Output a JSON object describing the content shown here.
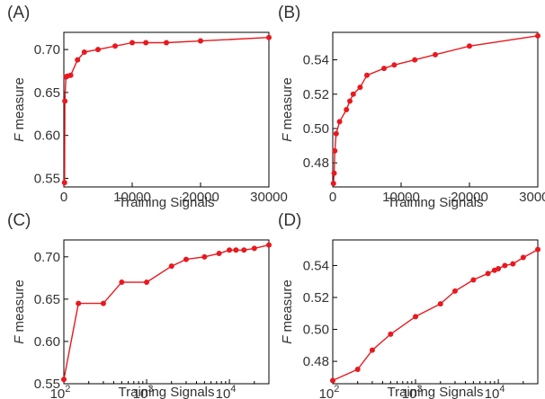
{
  "chart_data": [
    {
      "panel": "(A)",
      "type": "line",
      "xscale": "linear",
      "xlabel": "Training Signals",
      "ylabel_symbol": "F",
      "ylabel_text": " measure",
      "xlim": [
        0,
        30000
      ],
      "ylim": [
        0.54,
        0.72
      ],
      "xticks": [
        0,
        10000,
        20000,
        30000
      ],
      "xtick_labels": [
        "0",
        "10000",
        "20000",
        "30000"
      ],
      "yticks": [
        0.55,
        0.6,
        0.65,
        0.7
      ],
      "ytick_labels": [
        "0.55",
        "0.60",
        "0.65",
        "0.70"
      ],
      "color": "#e8191f",
      "x": [
        100,
        150,
        300,
        500,
        1000,
        2000,
        3000,
        5000,
        7500,
        10000,
        12000,
        15000,
        20000,
        30000
      ],
      "y": [
        0.545,
        0.64,
        0.668,
        0.669,
        0.67,
        0.688,
        0.697,
        0.7,
        0.704,
        0.708,
        0.708,
        0.708,
        0.71,
        0.714
      ]
    },
    {
      "panel": "(B)",
      "type": "line",
      "xscale": "linear",
      "xlabel": "Training Signals",
      "ylabel_symbol": "F",
      "ylabel_text": " measure",
      "xlim": [
        0,
        30000
      ],
      "ylim": [
        0.466,
        0.556
      ],
      "xticks": [
        0,
        10000,
        20000,
        30000
      ],
      "xtick_labels": [
        "0",
        "10000",
        "20000",
        "30000"
      ],
      "yticks": [
        0.48,
        0.5,
        0.52,
        0.54
      ],
      "ytick_labels": [
        "0.48",
        "0.50",
        "0.52",
        "0.54"
      ],
      "color": "#e8191f",
      "x": [
        100,
        200,
        300,
        500,
        1000,
        2000,
        2500,
        3000,
        4000,
        5000,
        7500,
        9000,
        12000,
        15000,
        20000,
        30000
      ],
      "y": [
        0.468,
        0.474,
        0.487,
        0.497,
        0.504,
        0.511,
        0.516,
        0.52,
        0.524,
        0.531,
        0.535,
        0.537,
        0.54,
        0.543,
        0.548,
        0.554
      ]
    },
    {
      "panel": "(C)",
      "type": "line",
      "xscale": "log",
      "xlabel": "Training Signals",
      "ylabel_symbol": "F",
      "ylabel_text": " measure",
      "xlim": [
        100,
        30000
      ],
      "ylim": [
        0.55,
        0.72
      ],
      "xticks": [
        100,
        1000,
        10000
      ],
      "xtick_labels": [
        "10",
        "10",
        "10"
      ],
      "xtick_exponents": [
        "2",
        "3",
        "4"
      ],
      "yticks": [
        0.55,
        0.6,
        0.65,
        0.7
      ],
      "ytick_labels": [
        "0.55",
        "0.60",
        "0.65",
        "0.70"
      ],
      "color": "#e8191f",
      "x": [
        100,
        150,
        300,
        500,
        1000,
        2000,
        3000,
        5000,
        7500,
        10000,
        12000,
        15000,
        20000,
        30000
      ],
      "y": [
        0.555,
        0.645,
        0.645,
        0.67,
        0.67,
        0.689,
        0.697,
        0.7,
        0.704,
        0.708,
        0.708,
        0.708,
        0.71,
        0.714
      ]
    },
    {
      "panel": "(D)",
      "type": "line",
      "xscale": "log",
      "xlabel": "Training Signals",
      "ylabel_symbol": "F",
      "ylabel_text": " measure",
      "xlim": [
        100,
        30000
      ],
      "ylim": [
        0.466,
        0.556
      ],
      "xticks": [
        100,
        1000,
        10000
      ],
      "xtick_labels": [
        "10",
        "10",
        "10"
      ],
      "xtick_exponents": [
        "2",
        "3",
        "4"
      ],
      "yticks": [
        0.48,
        0.5,
        0.52,
        0.54
      ],
      "ytick_labels": [
        "0.48",
        "0.50",
        "0.52",
        "0.54"
      ],
      "color": "#e8191f",
      "x": [
        100,
        200,
        300,
        500,
        1000,
        2000,
        3000,
        5000,
        7500,
        9000,
        10000,
        12000,
        15000,
        20000,
        30000
      ],
      "y": [
        0.468,
        0.475,
        0.487,
        0.497,
        0.508,
        0.516,
        0.524,
        0.531,
        0.535,
        0.537,
        0.538,
        0.54,
        0.541,
        0.545,
        0.55
      ]
    }
  ]
}
